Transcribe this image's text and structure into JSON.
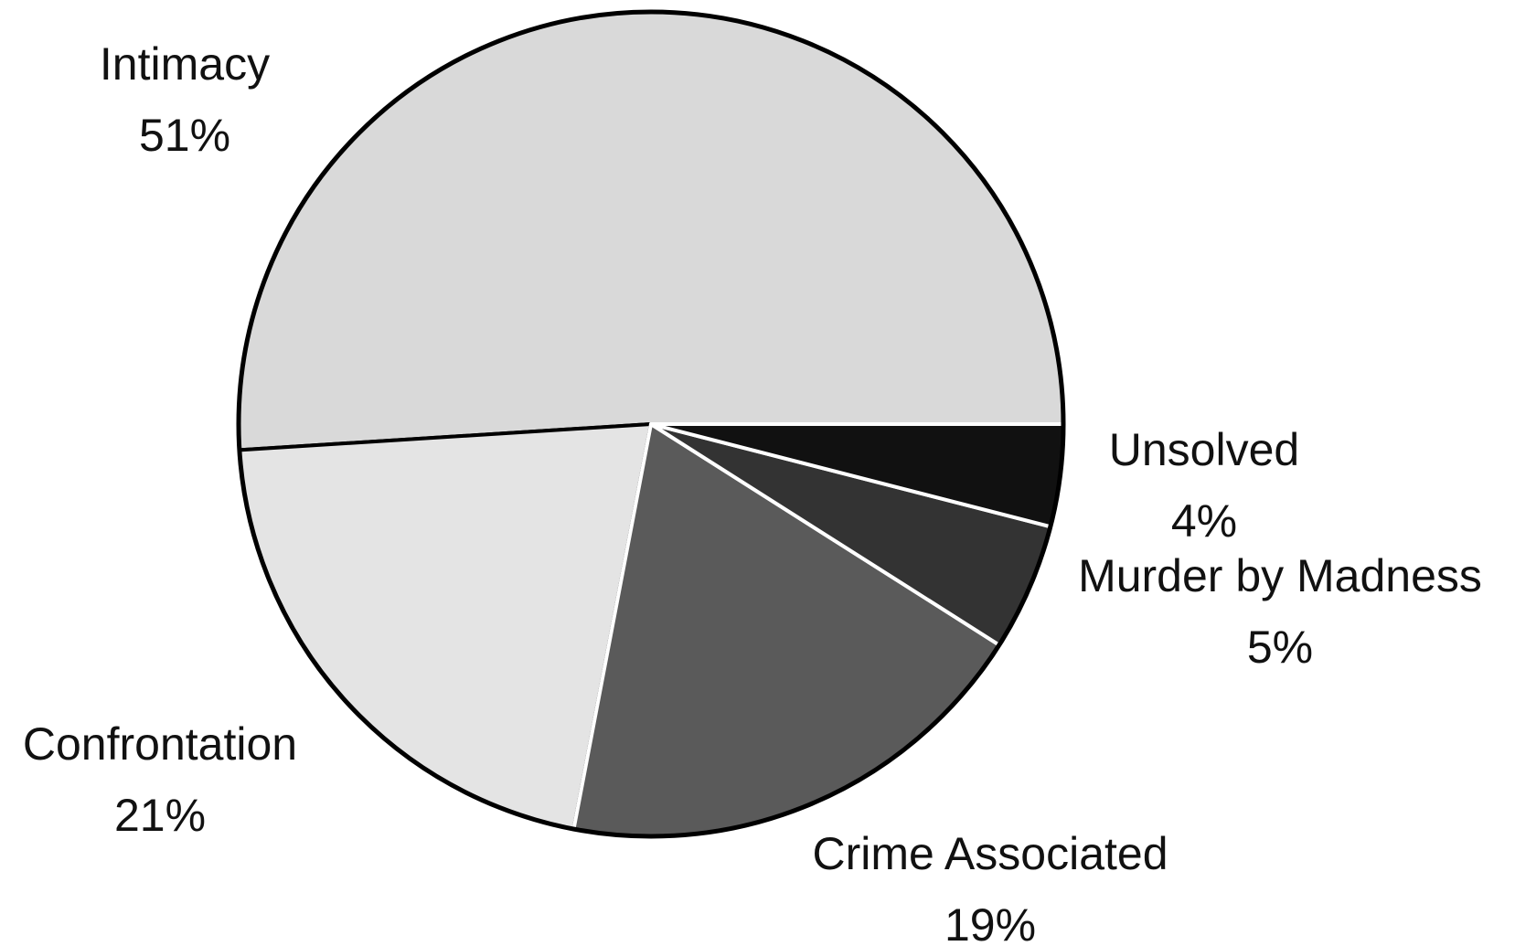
{
  "chart_data": {
    "type": "pie",
    "categories": [
      "Intimacy",
      "Confrontation",
      "Crime Associated",
      "Murder by Madness",
      "Unsolved"
    ],
    "values": [
      51,
      21,
      19,
      5,
      4
    ],
    "value_labels": [
      "51%",
      "21%",
      "19%",
      "5%",
      "4%"
    ],
    "colors": [
      "#d9d9d9",
      "#e4e4e4",
      "#5a5a5a",
      "#333333",
      "#111111"
    ]
  }
}
